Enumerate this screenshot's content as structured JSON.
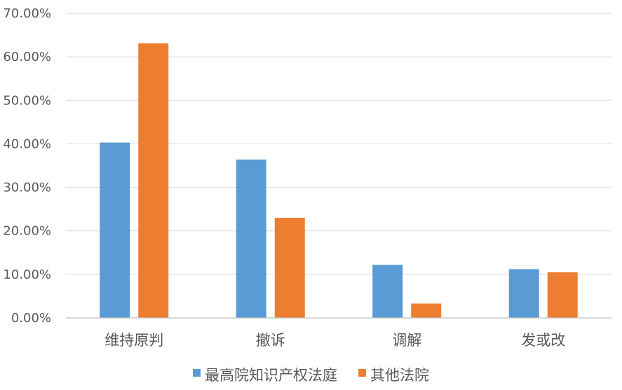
{
  "chart_data": {
    "type": "bar",
    "title": "",
    "xlabel": "",
    "ylabel": "",
    "categories": [
      "维持原判",
      "撤诉",
      "调解",
      "发或改"
    ],
    "series": [
      {
        "name": "最高院知识产权法庭",
        "color": "#5B9BD5",
        "values": [
          40.3,
          36.4,
          12.2,
          11.2
        ]
      },
      {
        "name": "其他法院",
        "color": "#ED7D31",
        "values": [
          63.1,
          23.0,
          3.3,
          10.5
        ]
      }
    ],
    "ylim": [
      0,
      70
    ],
    "yticks": [
      0,
      10,
      20,
      30,
      40,
      50,
      60,
      70
    ],
    "ytick_labels": [
      "0.00%",
      "10.00%",
      "20.00%",
      "30.00%",
      "40.00%",
      "50.00%",
      "60.00%",
      "70.00%"
    ],
    "grid": true,
    "legend_position": "bottom-center",
    "gridline_color": "#D9D9D9",
    "axis_line_color": "#BFBFBF",
    "text_color": "#595959"
  }
}
